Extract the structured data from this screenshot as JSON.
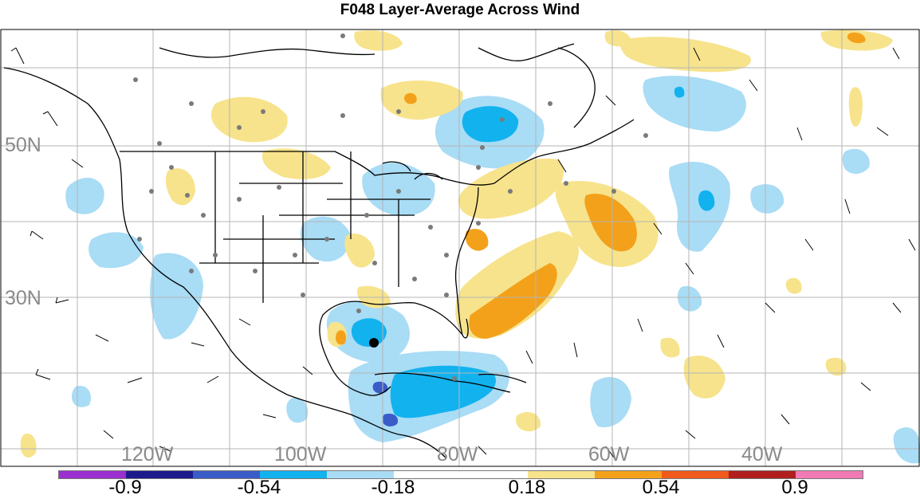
{
  "title": "F048 Layer-Average Across Wind",
  "lat_labels": [
    "50N",
    "30N"
  ],
  "lon_labels": [
    "120W",
    "100W",
    "80W",
    "60W",
    "40W"
  ],
  "colorbar": {
    "colors": [
      "#9b2fd0",
      "#1d1a8c",
      "#3a5cc8",
      "#12b2ef",
      "#a9dcf5",
      "#ffffff",
      "#ffffff",
      "#f7e38c",
      "#f3a11a",
      "#f05a1c",
      "#b01e1e",
      "#f07ab4"
    ],
    "tick_labels": [
      "-0.9",
      "-0.54",
      "-0.18",
      "0.18",
      "0.54",
      "0.9"
    ]
  },
  "colors": {
    "light_blue": "#a9dcf5",
    "blue": "#12b2ef",
    "dark_blue": "#3a5cc8",
    "light_orange": "#f7e38c",
    "orange": "#f3a11a",
    "grid": "#b5b5b5",
    "label_gray": "#8a8a8a"
  }
}
